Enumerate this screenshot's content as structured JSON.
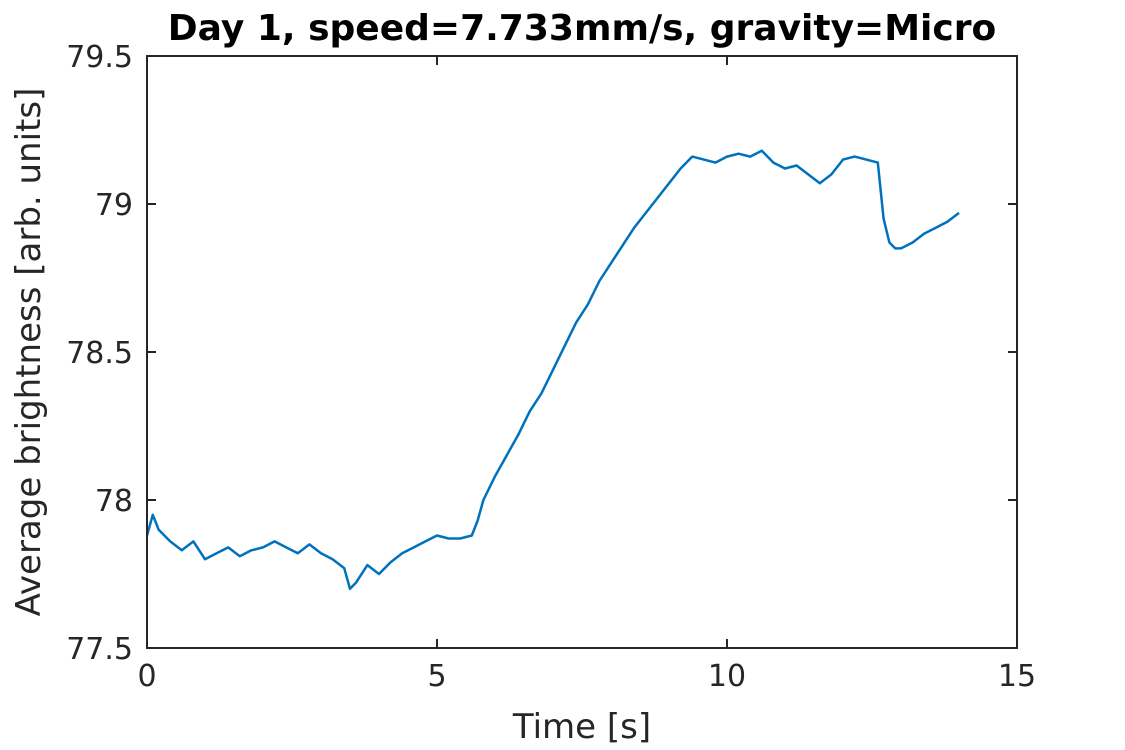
{
  "chart_data": {
    "type": "line",
    "title": "Day 1, speed=7.733mm/s, gravity=Micro",
    "xlabel": "Time [s]",
    "ylabel": "Average brightness [arb. units]",
    "xlim": [
      0,
      15
    ],
    "ylim": [
      77.5,
      79.5
    ],
    "xticks": [
      0,
      5,
      10,
      15
    ],
    "xtick_labels": [
      "0",
      "5",
      "10",
      "15"
    ],
    "yticks": [
      77.5,
      78,
      78.5,
      79,
      79.5
    ],
    "ytick_labels": [
      "77.5",
      "78",
      "78.5",
      "79",
      "79.5"
    ],
    "grid": false,
    "legend": "none",
    "series": [
      {
        "color": "#0072BD",
        "x": [
          0,
          0.1,
          0.2,
          0.4,
          0.6,
          0.8,
          1.0,
          1.2,
          1.4,
          1.6,
          1.8,
          2.0,
          2.2,
          2.4,
          2.6,
          2.8,
          3.0,
          3.2,
          3.4,
          3.5,
          3.6,
          3.8,
          4.0,
          4.2,
          4.4,
          4.6,
          4.8,
          5.0,
          5.2,
          5.4,
          5.6,
          5.7,
          5.8,
          6.0,
          6.2,
          6.4,
          6.6,
          6.8,
          7.0,
          7.2,
          7.4,
          7.6,
          7.8,
          8.0,
          8.2,
          8.4,
          8.6,
          8.8,
          9.0,
          9.2,
          9.4,
          9.6,
          9.8,
          10.0,
          10.2,
          10.4,
          10.6,
          10.8,
          11.0,
          11.2,
          11.4,
          11.6,
          11.8,
          12.0,
          12.2,
          12.4,
          12.6,
          12.7,
          12.8,
          12.9,
          13.0,
          13.2,
          13.4,
          13.6,
          13.8,
          14.0
        ],
        "y": [
          77.88,
          77.95,
          77.9,
          77.86,
          77.83,
          77.86,
          77.8,
          77.82,
          77.84,
          77.81,
          77.83,
          77.84,
          77.86,
          77.84,
          77.82,
          77.85,
          77.82,
          77.8,
          77.77,
          77.7,
          77.72,
          77.78,
          77.75,
          77.79,
          77.82,
          77.84,
          77.86,
          77.88,
          77.87,
          77.87,
          77.88,
          77.93,
          78.0,
          78.08,
          78.15,
          78.22,
          78.3,
          78.36,
          78.44,
          78.52,
          78.6,
          78.66,
          78.74,
          78.8,
          78.86,
          78.92,
          78.97,
          79.02,
          79.07,
          79.12,
          79.16,
          79.15,
          79.14,
          79.16,
          79.17,
          79.16,
          79.18,
          79.14,
          79.12,
          79.13,
          79.1,
          79.07,
          79.1,
          79.15,
          79.16,
          79.15,
          79.14,
          78.95,
          78.87,
          78.85,
          78.85,
          78.87,
          78.9,
          78.92,
          78.94,
          78.97
        ]
      }
    ]
  }
}
